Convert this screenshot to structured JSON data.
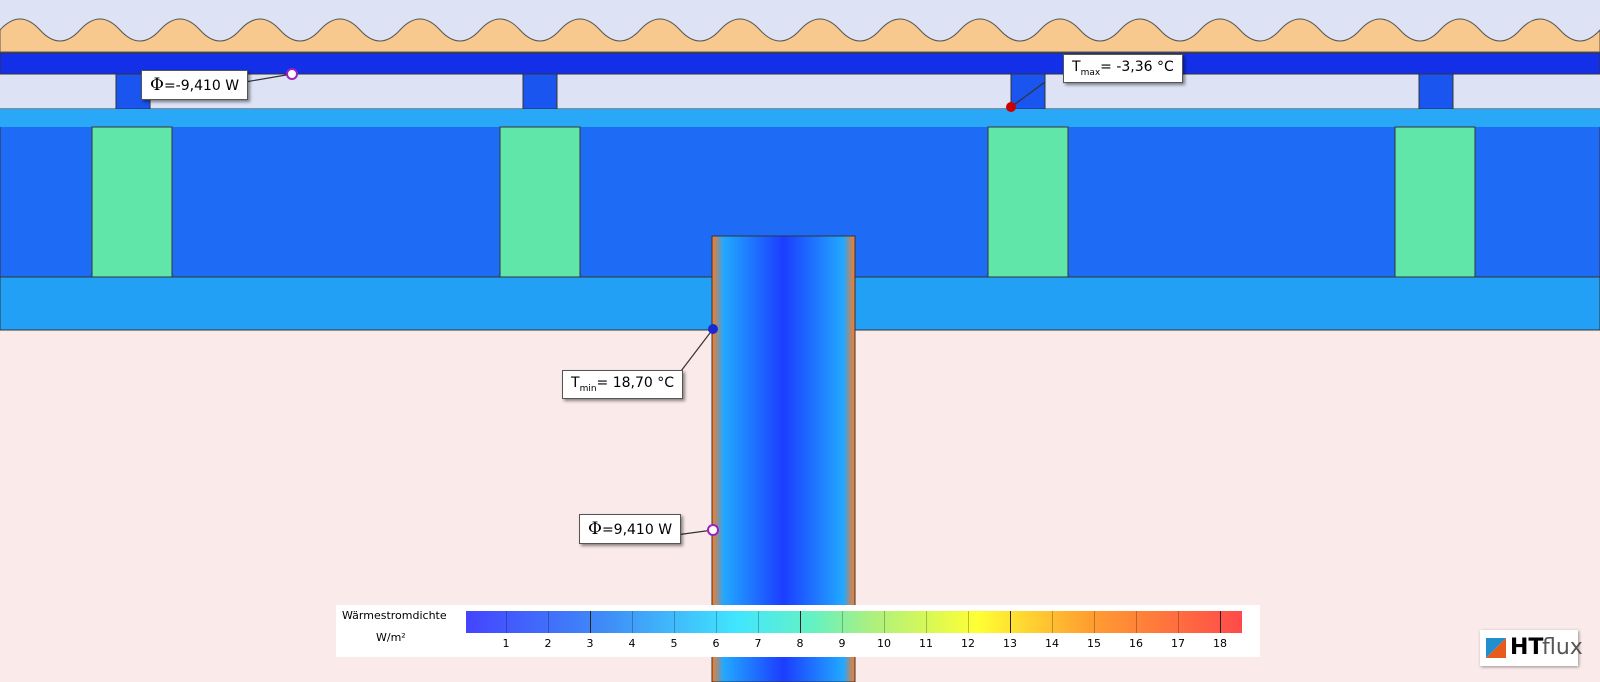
{
  "annotations": {
    "flux_top": {
      "symbol": "Φ",
      "text": "=-9,410 W"
    },
    "t_max": {
      "symbol": "T",
      "sub": "max",
      "text": "= -3,36 °C"
    },
    "t_min": {
      "symbol": "T",
      "sub": "min",
      "text": "= 18,70 °C"
    },
    "flux_bottom": {
      "symbol": "Φ",
      "text": "=9,410 W"
    }
  },
  "legend": {
    "title": "Wärmestromdichte",
    "unit": "W/m²",
    "ticks": [
      1,
      2,
      3,
      4,
      5,
      6,
      7,
      8,
      9,
      10,
      11,
      12,
      13,
      14,
      15,
      16,
      17,
      18
    ]
  },
  "logo": {
    "bold": "HT",
    "text": "flux"
  }
}
